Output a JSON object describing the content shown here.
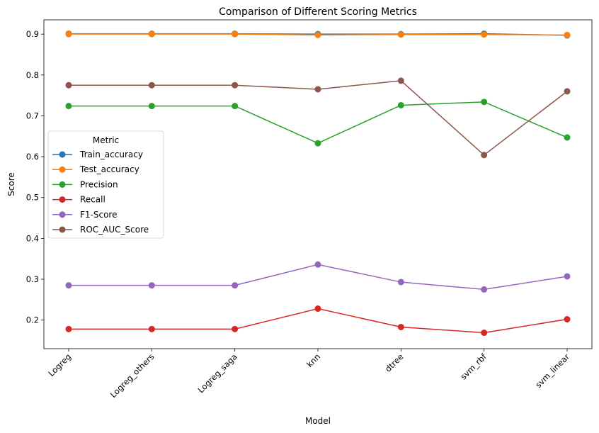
{
  "chart_data": {
    "type": "line",
    "title": "Comparison of Different Scoring Metrics",
    "xlabel": "Model",
    "ylabel": "Score",
    "categories": [
      "Logreg",
      "Logreg_others",
      "Logreg_saga",
      "knn",
      "dtree",
      "svm_rbf",
      "svm_linear"
    ],
    "ylim": [
      0.13,
      0.935
    ],
    "yticks": [
      0.2,
      0.3,
      0.4,
      0.5,
      0.6,
      0.7,
      0.8,
      0.9
    ],
    "ytick_labels": [
      "0.2",
      "0.3",
      "0.4",
      "0.5",
      "0.6",
      "0.7",
      "0.8",
      "0.9"
    ],
    "grid": false,
    "legend": {
      "title": "Metric",
      "placement": "center-left"
    },
    "series": [
      {
        "name": "Train_accuracy",
        "color": "#1f77b4",
        "values": [
          0.901,
          0.901,
          0.901,
          0.9,
          0.9,
          0.901,
          0.897
        ]
      },
      {
        "name": "Test_accuracy",
        "color": "#ff7f0e",
        "values": [
          0.9,
          0.9,
          0.9,
          0.898,
          0.899,
          0.899,
          0.898
        ]
      },
      {
        "name": "Precision",
        "color": "#2ca02c",
        "values": [
          0.724,
          0.724,
          0.724,
          0.633,
          0.726,
          0.734,
          0.647
        ]
      },
      {
        "name": "Recall",
        "color": "#d62728",
        "values": [
          0.178,
          0.178,
          0.178,
          0.228,
          0.183,
          0.169,
          0.202
        ]
      },
      {
        "name": "F1-Score",
        "color": "#9467bd",
        "values": [
          0.285,
          0.285,
          0.285,
          0.336,
          0.293,
          0.275,
          0.307
        ]
      },
      {
        "name": "ROC_AUC_Score",
        "color": "#8c564b",
        "values": [
          0.775,
          0.775,
          0.775,
          0.765,
          0.786,
          0.604,
          0.76
        ]
      }
    ]
  }
}
